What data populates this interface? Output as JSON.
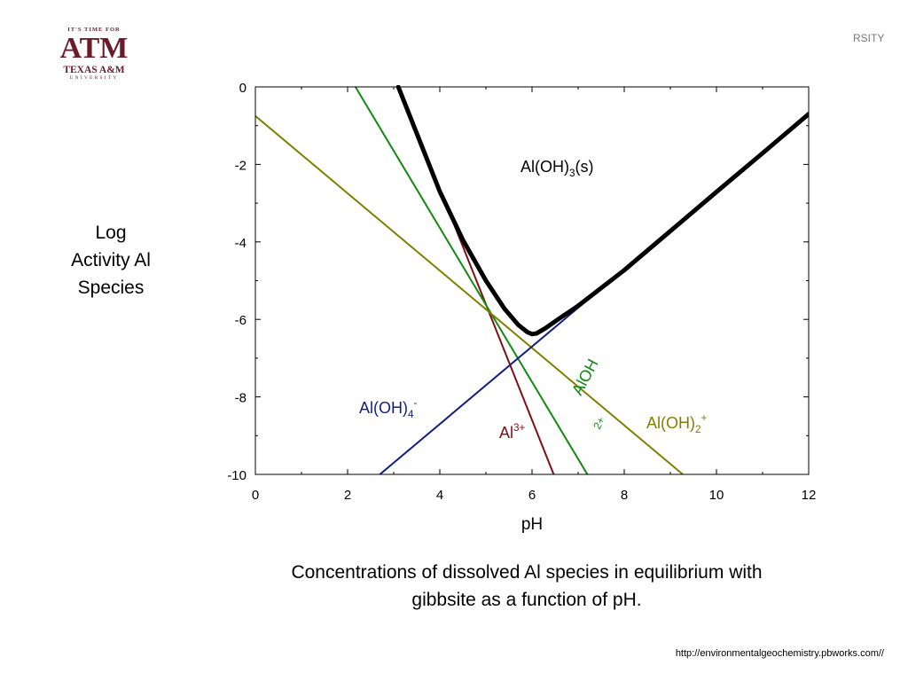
{
  "logo": {
    "tagline": "IT'S TIME FOR",
    "monogram": "ATM",
    "name": "TEXAS A&M",
    "subname": "UNIVERSITY"
  },
  "corner_text": "RSITY",
  "y_label": [
    "Log",
    "Activity Al",
    "Species"
  ],
  "caption": [
    "Concentrations of dissolved Al species in equilibrium with",
    "gibbsite as a function of pH."
  ],
  "source": "http://environmentalgeochemistry.pbworks.com//",
  "colors": {
    "Al3": "#7f0f14",
    "AlOH2": "#128a12",
    "AlOH2plus": "#808000",
    "AlOH4": "#0f1f86",
    "total": "#000000"
  },
  "chart_data": {
    "type": "line",
    "xlabel": "pH",
    "ylabel": "Log Activity Al Species",
    "xlim": [
      0,
      12
    ],
    "ylim": [
      -10,
      0
    ],
    "x_ticks": [
      0,
      2,
      4,
      6,
      8,
      10,
      12
    ],
    "y_ticks": [
      0,
      -2,
      -4,
      -6,
      -8,
      -10
    ],
    "grid": false,
    "series": [
      {
        "name": "Al",
        "superscript": "3+",
        "x": [
          3.12,
          6.47
        ],
        "y": [
          0,
          -10
        ]
      },
      {
        "name": "AlOH",
        "superscript": "2+",
        "x": [
          2.17,
          7.2
        ],
        "y": [
          0,
          -10
        ]
      },
      {
        "name": "Al(OH)",
        "subscript": "2",
        "superscript": "+",
        "x": [
          0,
          9.27
        ],
        "y": [
          -0.75,
          -10
        ]
      },
      {
        "name": "Al(OH)",
        "subscript": "4",
        "superscript": "-",
        "x": [
          2.7,
          12
        ],
        "y": [
          -10,
          -0.7
        ]
      },
      {
        "name": "Al(OH)3(s)",
        "x": [
          3.1,
          3.5,
          4,
          4.5,
          5,
          5.4,
          5.7,
          5.9,
          6,
          6.1,
          6.3,
          6.6,
          7,
          8,
          9,
          10,
          11,
          12
        ],
        "y": [
          0,
          -1.2,
          -2.7,
          -3.95,
          -5.0,
          -5.72,
          -6.14,
          -6.33,
          -6.38,
          -6.36,
          -6.22,
          -5.97,
          -5.65,
          -4.73,
          -3.72,
          -2.71,
          -1.71,
          -0.7
        ]
      }
    ],
    "annotations": {
      "region": {
        "name": "Al(OH)",
        "subscript": "3",
        "tail": "(s)"
      }
    }
  }
}
